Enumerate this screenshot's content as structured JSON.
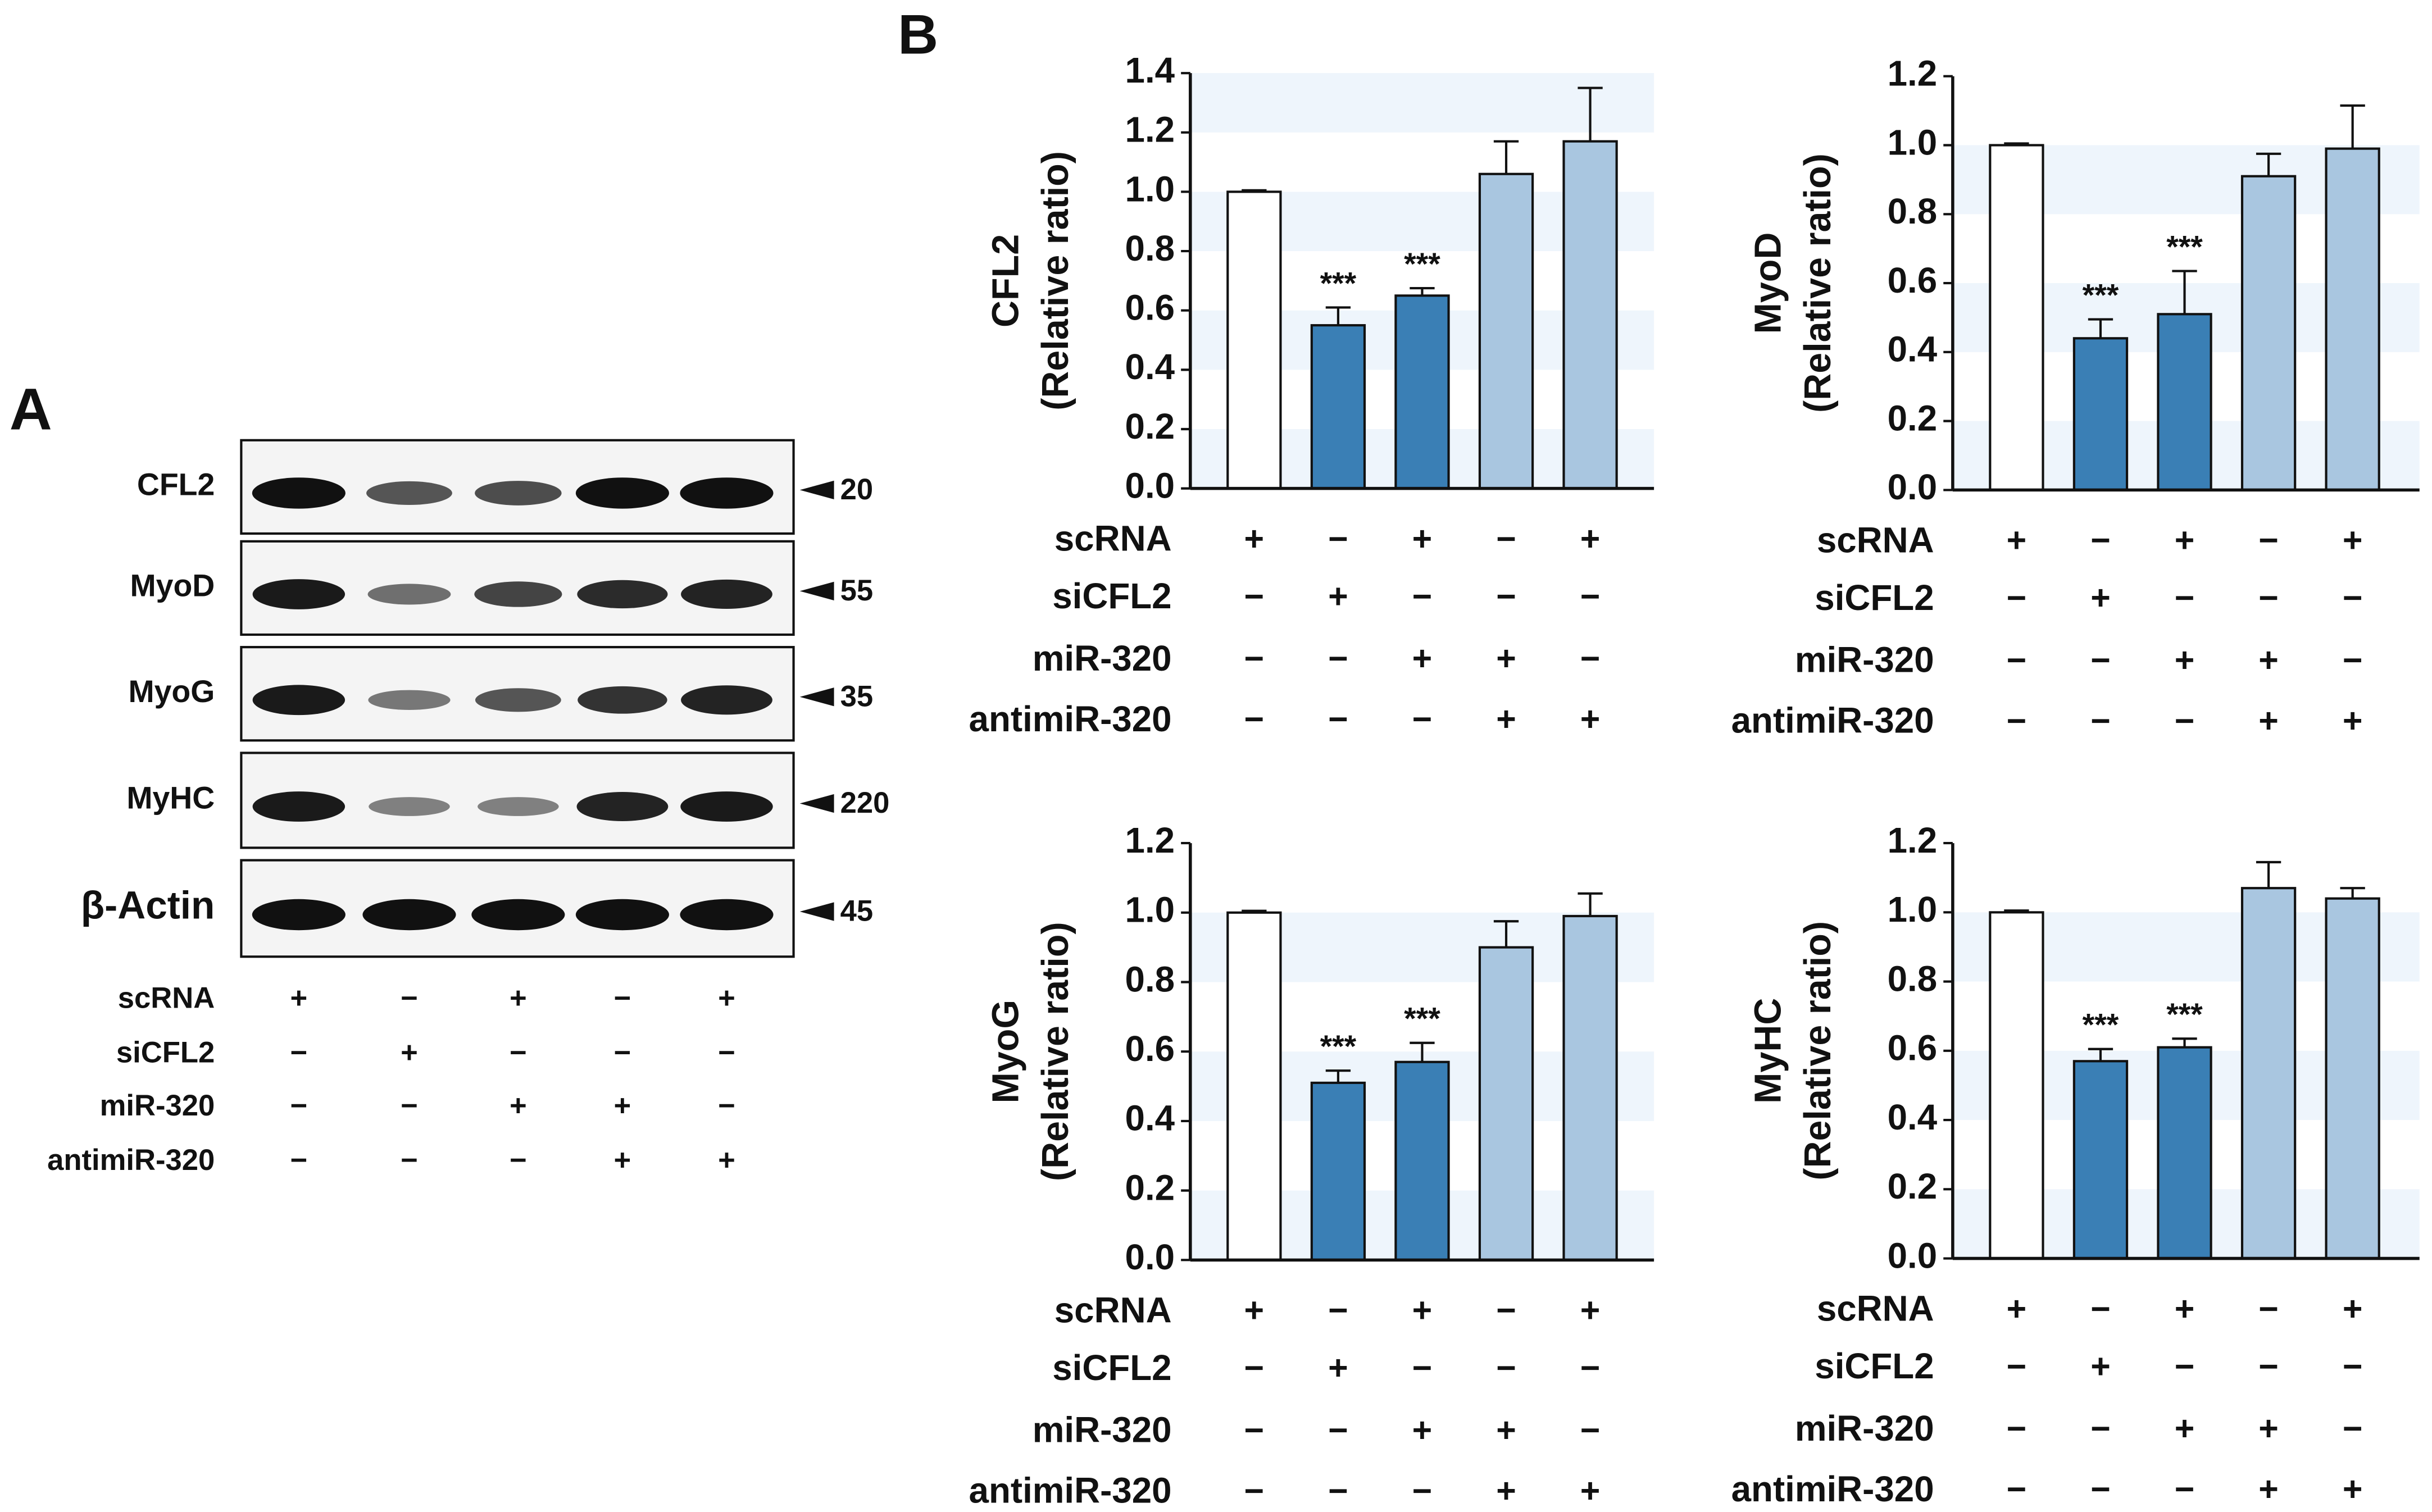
{
  "panel_labels": [
    "A",
    "B"
  ],
  "blot": {
    "rows": [
      {
        "label": "CFL2",
        "size": 20
      },
      {
        "label": "MyoD",
        "size": 55
      },
      {
        "label": "MyoG",
        "size": 35
      },
      {
        "label": "MyHC",
        "size": 220
      },
      {
        "label": "β-Actin",
        "size": 45
      }
    ],
    "conditions": [
      {
        "name": "scRNA",
        "signs": [
          "+",
          "−",
          "+",
          "−",
          "+"
        ]
      },
      {
        "name": "siCFL2",
        "signs": [
          "−",
          "+",
          "−",
          "−",
          "−"
        ]
      },
      {
        "name": "miR-320",
        "signs": [
          "−",
          "−",
          "+",
          "+",
          "−"
        ]
      },
      {
        "name": "antimiR-320",
        "signs": [
          "−",
          "−",
          "−",
          "+",
          "+"
        ]
      }
    ]
  },
  "chart_data": [
    {
      "type": "bar",
      "ylabel": [
        "CFL2",
        "(Relative ratio)"
      ],
      "values": [
        1.0,
        0.55,
        0.65,
        1.06,
        1.17
      ],
      "errors": [
        0.005,
        0.06,
        0.025,
        0.11,
        0.18
      ],
      "colors": [
        "#ffffff",
        "#3a7fb5",
        "#3a7fb5",
        "#a9c6e0",
        "#a9c6e0"
      ],
      "annotations": [
        {
          "bar": 1,
          "text": "***"
        },
        {
          "bar": 2,
          "text": "***"
        }
      ],
      "ylim": [
        0,
        1.4
      ],
      "yticks": [
        {
          "value": 0,
          "label": "0.0"
        },
        0.2,
        0.4,
        0.6,
        0.8,
        {
          "value": 1,
          "label": "1.0"
        },
        1.2,
        1.4
      ],
      "stripes": true,
      "conditions": [
        {
          "name": "scRNA",
          "signs": [
            "+",
            "−",
            "+",
            "−",
            "+"
          ]
        },
        {
          "name": "siCFL2",
          "signs": [
            "−",
            "+",
            "−",
            "−",
            "−"
          ]
        },
        {
          "name": "miR-320",
          "signs": [
            "−",
            "−",
            "+",
            "+",
            "−"
          ]
        },
        {
          "name": "antimiR-320",
          "signs": [
            "−",
            "−",
            "−",
            "+",
            "+"
          ]
        }
      ]
    },
    {
      "type": "bar",
      "ylabel": [
        "MyoD",
        "(Relative ratio)"
      ],
      "values": [
        1.0,
        0.44,
        0.51,
        0.91,
        0.99
      ],
      "errors": [
        0.005,
        0.055,
        0.125,
        0.065,
        0.125
      ],
      "colors": [
        "#ffffff",
        "#3a7fb5",
        "#3a7fb5",
        "#a9c6e0",
        "#a9c6e0"
      ],
      "annotations": [
        {
          "bar": 1,
          "text": "***"
        },
        {
          "bar": 2,
          "text": "***"
        }
      ],
      "ylim": [
        0,
        1.2
      ],
      "yticks": [
        {
          "value": 0,
          "label": "0.0"
        },
        0.2,
        0.4,
        0.6,
        0.8,
        {
          "value": 1,
          "label": "1.0"
        },
        1.2
      ],
      "stripes": true,
      "conditions": [
        {
          "name": "scRNA",
          "signs": [
            "+",
            "−",
            "+",
            "−",
            "+"
          ]
        },
        {
          "name": "siCFL2",
          "signs": [
            "−",
            "+",
            "−",
            "−",
            "−"
          ]
        },
        {
          "name": "miR-320",
          "signs": [
            "−",
            "−",
            "+",
            "+",
            "−"
          ]
        },
        {
          "name": "antimiR-320",
          "signs": [
            "−",
            "−",
            "−",
            "+",
            "+"
          ]
        }
      ]
    },
    {
      "type": "bar",
      "ylabel": [
        "MyoG",
        "(Relative ratio)"
      ],
      "values": [
        1.0,
        0.51,
        0.57,
        0.9,
        0.99
      ],
      "errors": [
        0.005,
        0.035,
        0.055,
        0.075,
        0.065
      ],
      "colors": [
        "#ffffff",
        "#3a7fb5",
        "#3a7fb5",
        "#a9c6e0",
        "#a9c6e0"
      ],
      "annotations": [
        {
          "bar": 1,
          "text": "***"
        },
        {
          "bar": 2,
          "text": "***"
        }
      ],
      "ylim": [
        0,
        1.2
      ],
      "yticks": [
        {
          "value": 0,
          "label": "0.0"
        },
        0.2,
        0.4,
        0.6,
        0.8,
        {
          "value": 1,
          "label": "1.0"
        },
        1.2
      ],
      "stripes": true,
      "conditions": [
        {
          "name": "scRNA",
          "signs": [
            "+",
            "−",
            "+",
            "−",
            "+"
          ]
        },
        {
          "name": "siCFL2",
          "signs": [
            "−",
            "+",
            "−",
            "−",
            "−"
          ]
        },
        {
          "name": "miR-320",
          "signs": [
            "−",
            "−",
            "+",
            "+",
            "−"
          ]
        },
        {
          "name": "antimiR-320",
          "signs": [
            "−",
            "−",
            "−",
            "+",
            "+"
          ]
        }
      ]
    },
    {
      "type": "bar",
      "ylabel": [
        "MyHC",
        "(Relative ratio)"
      ],
      "values": [
        1.0,
        0.57,
        0.61,
        1.07,
        1.04
      ],
      "errors": [
        0.005,
        0.035,
        0.025,
        0.075,
        0.03
      ],
      "colors": [
        "#ffffff",
        "#3a7fb5",
        "#3a7fb5",
        "#a9c6e0",
        "#a9c6e0"
      ],
      "annotations": [
        {
          "bar": 1,
          "text": "***"
        },
        {
          "bar": 2,
          "text": "***"
        }
      ],
      "ylim": [
        0,
        1.2
      ],
      "yticks": [
        {
          "value": 0,
          "label": "0.0"
        },
        0.2,
        0.4,
        0.6,
        0.8,
        {
          "value": 1,
          "label": "1.0"
        },
        1.2
      ],
      "stripes": true,
      "conditions": [
        {
          "name": "scRNA",
          "signs": [
            "+",
            "−",
            "+",
            "−",
            "+"
          ]
        },
        {
          "name": "siCFL2",
          "signs": [
            "−",
            "+",
            "−",
            "−",
            "−"
          ]
        },
        {
          "name": "miR-320",
          "signs": [
            "−",
            "−",
            "+",
            "+",
            "−"
          ]
        },
        {
          "name": "antimiR-320",
          "signs": [
            "−",
            "−",
            "−",
            "+",
            "+"
          ]
        }
      ]
    }
  ]
}
